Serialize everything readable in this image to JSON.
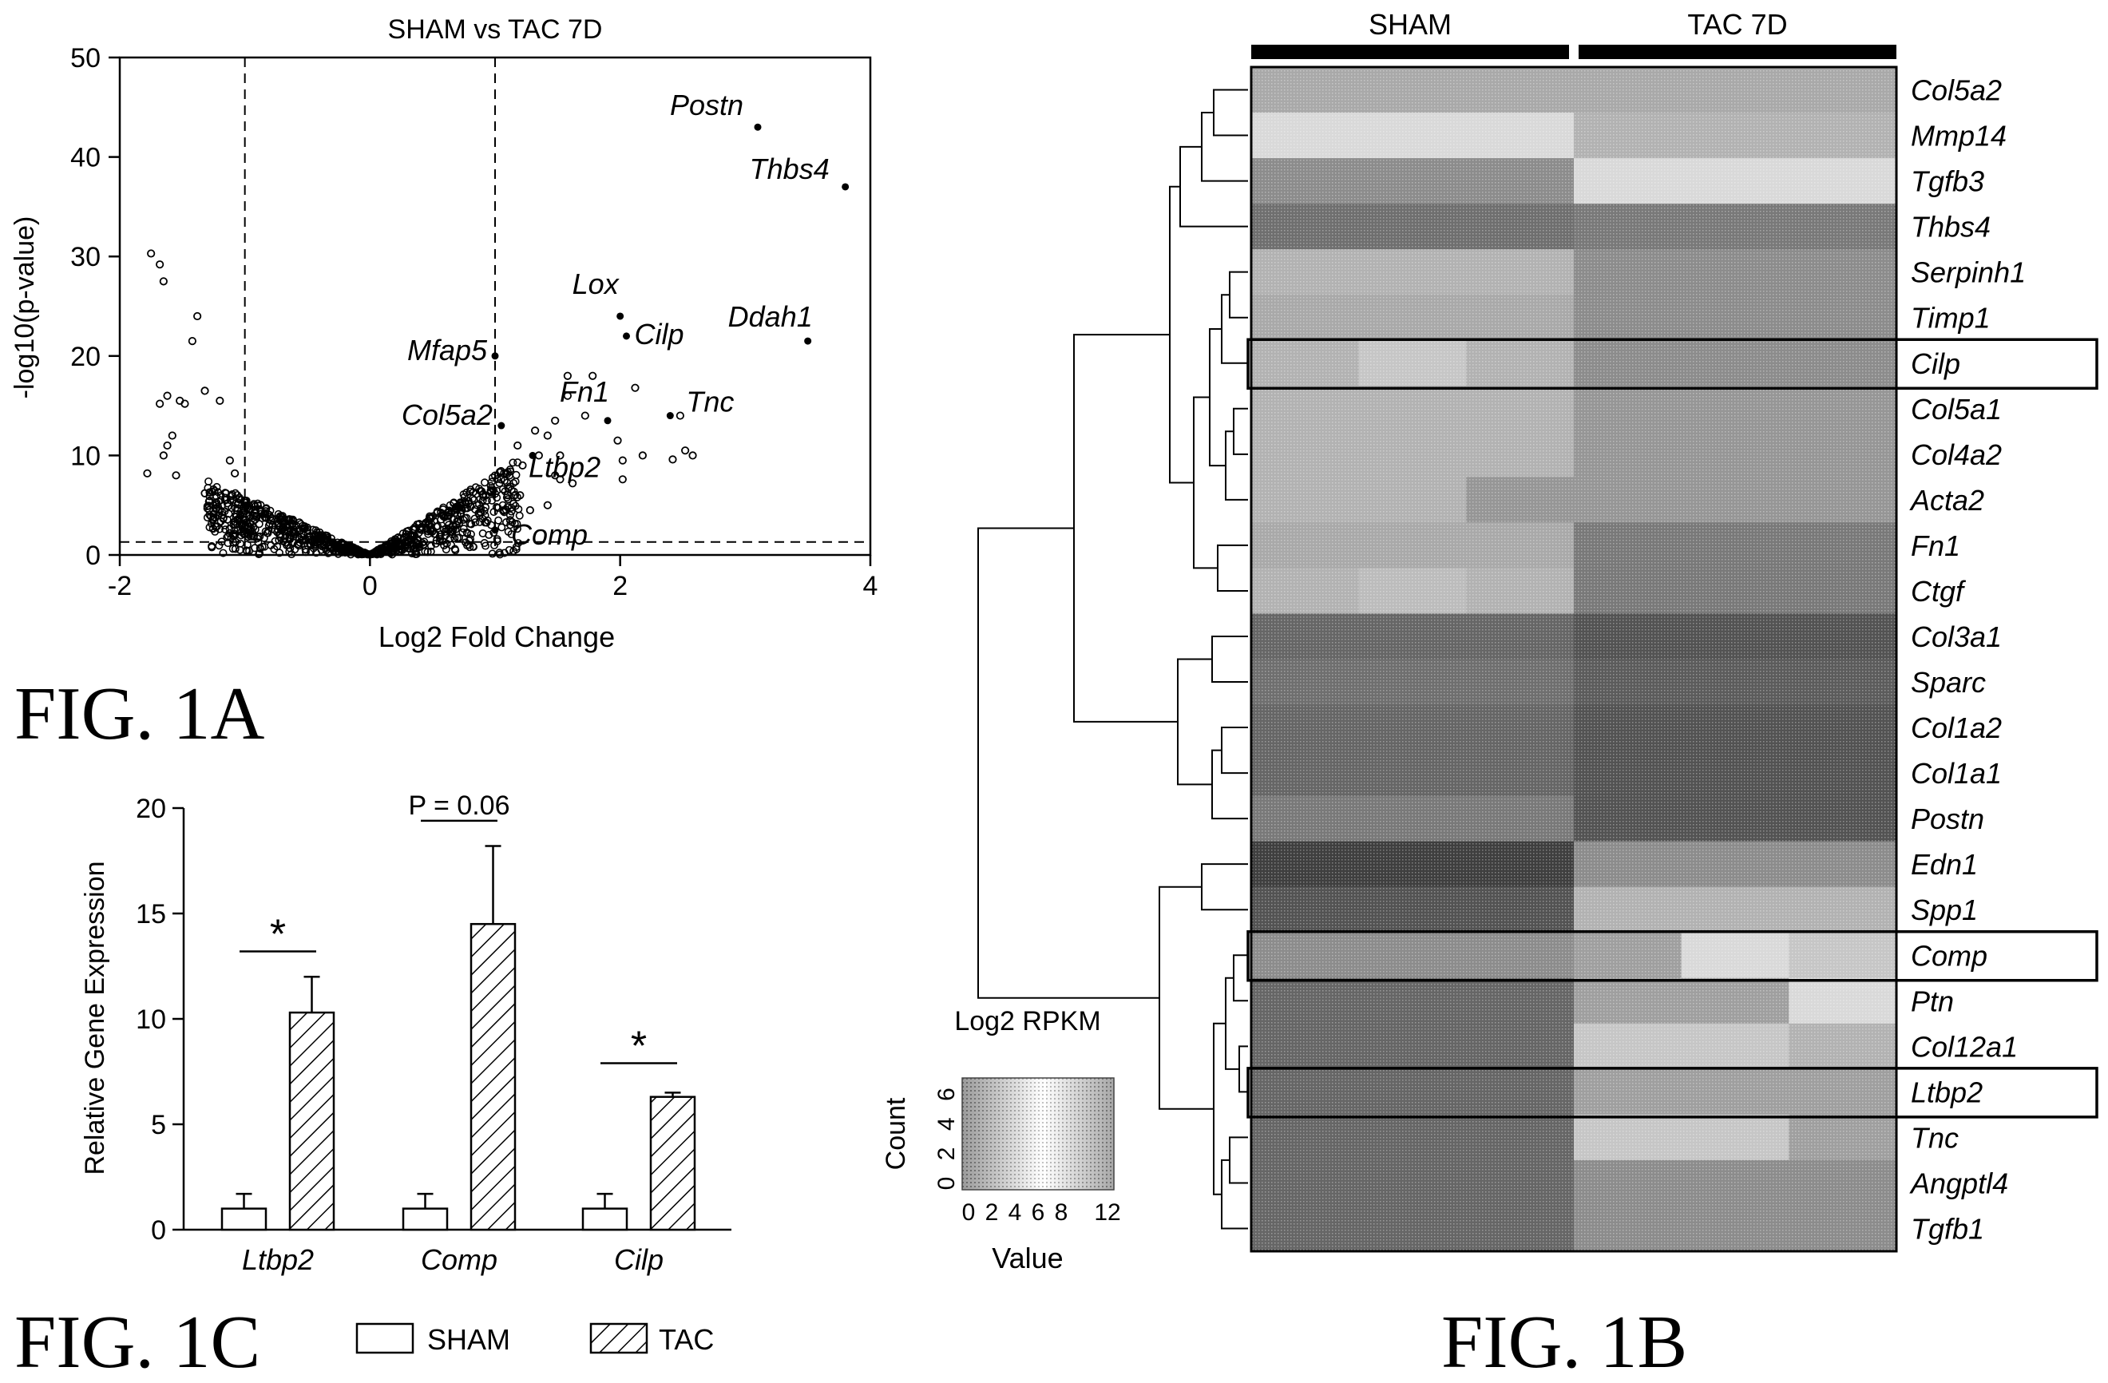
{
  "figure_labels": {
    "a": "FIG. 1A",
    "b": "FIG. 1B",
    "c": "FIG. 1C"
  },
  "chart_data": [
    {
      "id": "1A",
      "type": "scatter",
      "title": "SHAM vs TAC 7D",
      "xlabel": "Log2 Fold Change",
      "ylabel": "-log10(p-value)",
      "xlim": [
        -2,
        4
      ],
      "ylim": [
        0,
        50
      ],
      "xticks": [
        -2,
        0,
        2,
        4
      ],
      "yticks": [
        0,
        10,
        20,
        30,
        40,
        50
      ],
      "thresholds": {
        "x": [
          -1,
          1
        ],
        "y": 1.3
      },
      "labeled_points": [
        {
          "label": "Postn",
          "x": 3.1,
          "y": 43
        },
        {
          "label": "Thbs4",
          "x": 3.8,
          "y": 37
        },
        {
          "label": "Lox",
          "x": 2.0,
          "y": 24
        },
        {
          "label": "Cilp",
          "x": 2.05,
          "y": 22
        },
        {
          "label": "Ddah1",
          "x": 3.5,
          "y": 21.5
        },
        {
          "label": "Mfap5",
          "x": 1.0,
          "y": 20
        },
        {
          "label": "Fn1",
          "x": 1.9,
          "y": 13.5
        },
        {
          "label": "Col5a2",
          "x": 1.05,
          "y": 13
        },
        {
          "label": "Tnc",
          "x": 2.4,
          "y": 14
        },
        {
          "label": "Ltbp2",
          "x": 1.3,
          "y": 10
        },
        {
          "label": "Comp",
          "x": 1.0,
          "y": 2.5
        }
      ],
      "points": [
        [
          -1.75,
          30.3
        ],
        [
          -1.68,
          29.2
        ],
        [
          -1.65,
          27.5
        ],
        [
          -1.38,
          24
        ],
        [
          -1.42,
          21.5
        ],
        [
          -1.32,
          16.5
        ],
        [
          -1.2,
          15.5
        ],
        [
          -1.62,
          16
        ],
        [
          -1.52,
          15.5
        ],
        [
          -1.48,
          15.2
        ],
        [
          -1.68,
          15.2
        ],
        [
          -1.58,
          12
        ],
        [
          -1.62,
          11
        ],
        [
          -1.65,
          10
        ],
        [
          -1.55,
          8
        ],
        [
          -1.78,
          8.2
        ],
        [
          -1.12,
          9.5
        ],
        [
          -1.08,
          8.2
        ],
        [
          -1.32,
          6.2
        ],
        [
          -1.25,
          5
        ],
        [
          -1.2,
          4.5
        ],
        [
          2.12,
          16.8
        ],
        [
          2.48,
          14
        ],
        [
          2.58,
          10
        ],
        [
          2.52,
          10.5
        ],
        [
          2.42,
          9.6
        ],
        [
          2.18,
          10
        ],
        [
          1.78,
          18
        ],
        [
          1.58,
          18
        ],
        [
          1.52,
          10
        ],
        [
          1.42,
          12
        ],
        [
          1.32,
          12.5
        ],
        [
          1.48,
          13.5
        ],
        [
          1.18,
          11
        ],
        [
          1.22,
          9
        ],
        [
          1.72,
          14
        ],
        [
          1.98,
          11.5
        ],
        [
          2.02,
          9.5
        ],
        [
          2.02,
          7.6
        ],
        [
          1.62,
          7.2
        ],
        [
          1.52,
          7.6
        ],
        [
          1.42,
          5
        ],
        [
          1.28,
          4.5
        ],
        [
          1.12,
          3.5
        ],
        [
          1.1,
          4.8
        ],
        [
          1.2,
          6
        ],
        [
          1.58,
          16
        ],
        [
          1.48,
          8
        ],
        [
          1.35,
          10
        ]
      ]
    },
    {
      "id": "1B",
      "type": "heatmap",
      "column_groups": [
        "SHAM",
        "TAC 7D"
      ],
      "rows": [
        "Col5a2",
        "Mmp14",
        "Tgfb3",
        "Thbs4",
        "Serpinh1",
        "Timp1",
        "Cilp",
        "Col5a1",
        "Col4a2",
        "Acta2",
        "Fn1",
        "Ctgf",
        "Col3a1",
        "Sparc",
        "Col1a2",
        "Col1a1",
        "Postn",
        "Edn1",
        "Spp1",
        "Comp",
        "Ptn",
        "Col12a1",
        "Ltbp2",
        "Tnc",
        "Angptl4",
        "Tgfb1"
      ],
      "highlighted_rows": [
        "Cilp",
        "Comp",
        "Ltbp2"
      ],
      "values_scale": [
        0,
        12
      ],
      "colorkey": {
        "title": "Log2 RPKM",
        "xlabel": "Value",
        "ylabel": "Count",
        "xticks": [
          "0",
          "2",
          "4",
          "6",
          "8",
          "12"
        ],
        "yticks": [
          "0",
          "2",
          "4",
          "6"
        ]
      },
      "values": [
        [
          4.5,
          4.5,
          4.5,
          4.5,
          4.5,
          4.5
        ],
        [
          2,
          2,
          2,
          4,
          4,
          4
        ],
        [
          6,
          6,
          6,
          2,
          2,
          2
        ],
        [
          7.5,
          7.5,
          7.5,
          7,
          7,
          7
        ],
        [
          4,
          4,
          4,
          6,
          6,
          6
        ],
        [
          4.5,
          4.5,
          4.5,
          6,
          6,
          6
        ],
        [
          4,
          3,
          4,
          6,
          6,
          6
        ],
        [
          4,
          4,
          4,
          5.5,
          5.5,
          5.5
        ],
        [
          4,
          4,
          4,
          5.5,
          5.5,
          5.5
        ],
        [
          4,
          4,
          5.5,
          5.5,
          5.5,
          5.5
        ],
        [
          4.5,
          4.5,
          4.5,
          7,
          7,
          7
        ],
        [
          4,
          3.5,
          4,
          7,
          7,
          7
        ],
        [
          8,
          8,
          8,
          9,
          9,
          9
        ],
        [
          7.5,
          7.5,
          7.5,
          8.5,
          8.5,
          8.5
        ],
        [
          8,
          8,
          8,
          9,
          9,
          9
        ],
        [
          8,
          8,
          8,
          9,
          9,
          9
        ],
        [
          7,
          7,
          7,
          9,
          9,
          9
        ],
        [
          10,
          10,
          10,
          6,
          6,
          6
        ],
        [
          9,
          9,
          9,
          4,
          4,
          4
        ],
        [
          6,
          6,
          6,
          5,
          2,
          3
        ],
        [
          8,
          8,
          8,
          5,
          5,
          2
        ],
        [
          8,
          8,
          8,
          3,
          3,
          4
        ],
        [
          8,
          8,
          8,
          5,
          5,
          5
        ],
        [
          8,
          8,
          8,
          3,
          3,
          5
        ],
        [
          8,
          8,
          8,
          6,
          6,
          6
        ],
        [
          8,
          8,
          8,
          6,
          6,
          6
        ]
      ]
    },
    {
      "id": "1C",
      "type": "bar",
      "categories": [
        "Ltbp2",
        "Comp",
        "Cilp"
      ],
      "ylabel": "Relative Gene Expression",
      "ylim": [
        0,
        20
      ],
      "yticks": [
        0,
        5,
        10,
        15,
        20
      ],
      "series": [
        {
          "name": "SHAM",
          "values": [
            1,
            1,
            1
          ],
          "errors": [
            0.7,
            0.7,
            0.7
          ]
        },
        {
          "name": "TAC",
          "values": [
            10.3,
            14.5,
            6.3
          ],
          "errors": [
            1.7,
            3.7,
            0.2
          ]
        }
      ],
      "annotations": [
        "*",
        "P = 0.06",
        "*"
      ]
    }
  ]
}
